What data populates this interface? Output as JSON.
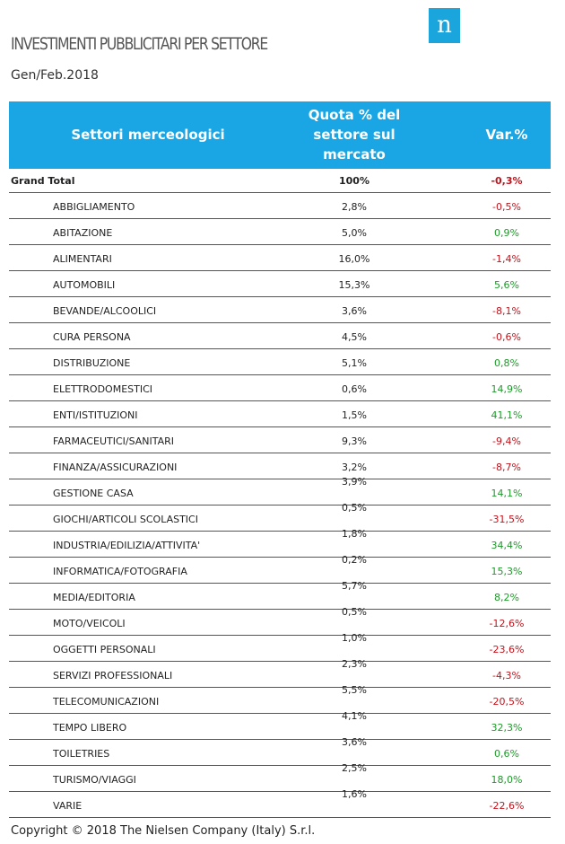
{
  "title": "INVESTIMENTI PUBBLICITARI PER SETTORE",
  "subtitle": "Gen/Feb.2018",
  "logo_letter": "n",
  "header": {
    "sector": "Settori merceologici",
    "quota_line1": "Quota % del",
    "quota_line2": "settore sul",
    "quota_line3": "mercato",
    "var": "Var.%"
  },
  "grand_total": {
    "sector": "Grand Total",
    "quota": "100%",
    "var": "-0,3%"
  },
  "rows": [
    {
      "sector": "ABBIGLIAMENTO",
      "quota": "2,8%",
      "var": "-0,5%",
      "trend": "neg"
    },
    {
      "sector": "ABITAZIONE",
      "quota": "5,0%",
      "var": "0,9%",
      "trend": "pos"
    },
    {
      "sector": "ALIMENTARI",
      "quota": "16,0%",
      "var": "-1,4%",
      "trend": "neg"
    },
    {
      "sector": "AUTOMOBILI",
      "quota": "15,3%",
      "var": "5,6%",
      "trend": "pos"
    },
    {
      "sector": "BEVANDE/ALCOOLICI",
      "quota": "3,6%",
      "var": "-8,1%",
      "trend": "neg"
    },
    {
      "sector": "CURA PERSONA",
      "quota": "4,5%",
      "var": "-0,6%",
      "trend": "neg"
    },
    {
      "sector": "DISTRIBUZIONE",
      "quota": "5,1%",
      "var": "0,8%",
      "trend": "pos"
    },
    {
      "sector": "ELETTRODOMESTICI",
      "quota": "0,6%",
      "var": "14,9%",
      "trend": "pos"
    },
    {
      "sector": "ENTI/ISTITUZIONI",
      "quota": "1,5%",
      "var": "41,1%",
      "trend": "pos"
    },
    {
      "sector": "FARMACEUTICI/SANITARI",
      "quota": "9,3%",
      "var": "-9,4%",
      "trend": "neg"
    },
    {
      "sector": "FINANZA/ASSICURAZIONI",
      "quota": "3,2%",
      "var": "-8,7%",
      "trend": "neg"
    },
    {
      "sector": "GESTIONE CASA",
      "quota": "3,9%",
      "var": "14,1%",
      "trend": "pos",
      "shift": true
    },
    {
      "sector": "GIOCHI/ARTICOLI SCOLASTICI",
      "quota": "0,5%",
      "var": "-31,5%",
      "trend": "neg",
      "shift": true
    },
    {
      "sector": "INDUSTRIA/EDILIZIA/ATTIVITA'",
      "quota": "1,8%",
      "var": "34,4%",
      "trend": "pos",
      "shift": true
    },
    {
      "sector": "INFORMATICA/FOTOGRAFIA",
      "quota": "0,2%",
      "var": "15,3%",
      "trend": "pos",
      "shift": true
    },
    {
      "sector": "MEDIA/EDITORIA",
      "quota": "5,7%",
      "var": "8,2%",
      "trend": "pos",
      "shift": true
    },
    {
      "sector": "MOTO/VEICOLI",
      "quota": "0,5%",
      "var": "-12,6%",
      "trend": "neg",
      "shift": true
    },
    {
      "sector": "OGGETTI PERSONALI",
      "quota": "1,0%",
      "var": "-23,6%",
      "trend": "neg",
      "shift": true
    },
    {
      "sector": "SERVIZI PROFESSIONALI",
      "quota": "2,3%",
      "var": "-4,3%",
      "trend": "neg",
      "shift": true
    },
    {
      "sector": "TELECOMUNICAZIONI",
      "quota": "5,5%",
      "var": "-20,5%",
      "trend": "neg",
      "shift": true
    },
    {
      "sector": "TEMPO LIBERO",
      "quota": "4,1%",
      "var": "32,3%",
      "trend": "pos",
      "shift": true
    },
    {
      "sector": "TOILETRIES",
      "quota": "3,6%",
      "var": "0,6%",
      "trend": "pos",
      "shift": true
    },
    {
      "sector": "TURISMO/VIAGGI",
      "quota": "2,5%",
      "var": "18,0%",
      "trend": "pos",
      "shift": true
    },
    {
      "sector": "VARIE",
      "quota": "1,6%",
      "var": "-22,6%",
      "trend": "neg",
      "shift": true
    }
  ],
  "footer": "Copyright © 2018 The Nielsen Company (Italy) S.r.l.",
  "colors": {
    "header_bg": "#1aa5e4",
    "negative": "#c0141c",
    "positive": "#1e9a2a",
    "logo_bg": "#1aa5dc"
  }
}
